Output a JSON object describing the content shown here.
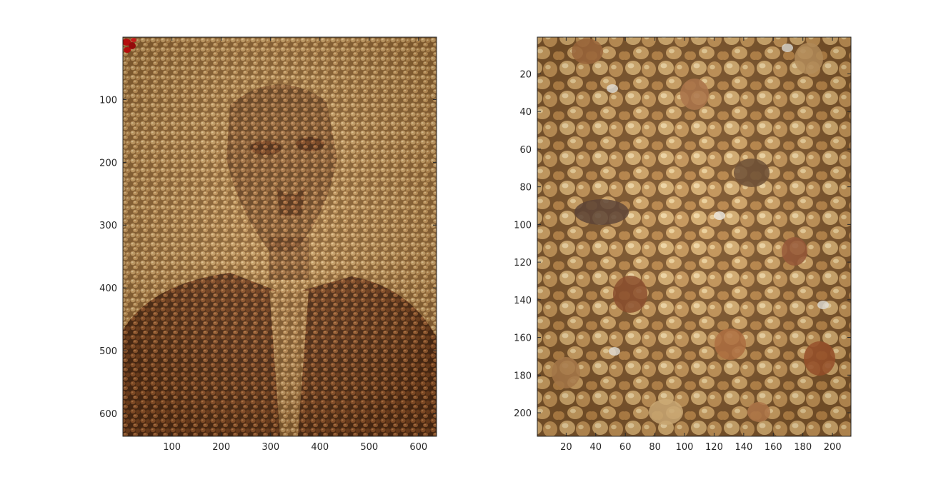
{
  "chart_data": [
    {
      "type": "image",
      "title": "",
      "xlabel": "",
      "ylabel": "",
      "xlim": [
        0.5,
        636.5
      ],
      "ylim": [
        0.5,
        636.5
      ],
      "y_reversed": true,
      "xticks": [
        100,
        200,
        300,
        400,
        500,
        600
      ],
      "yticks": [
        100,
        200,
        300,
        400,
        500,
        600
      ],
      "grid": false,
      "content": "grain mosaic image forming a portrait",
      "colors": {
        "light_grain": "#c79a5e",
        "dark_grain": "#7a4424",
        "accent": "#cc1010"
      }
    },
    {
      "type": "image",
      "title": "",
      "xlabel": "",
      "ylabel": "",
      "xlim": [
        0.5,
        212.5
      ],
      "ylim": [
        0.5,
        212.5
      ],
      "y_reversed": true,
      "xticks": [
        20,
        40,
        60,
        80,
        100,
        120,
        140,
        160,
        180,
        200
      ],
      "yticks": [
        20,
        40,
        60,
        80,
        100,
        120,
        140,
        160,
        180,
        200
      ],
      "grid": false,
      "content": "close-up of millet grains",
      "colors": {
        "light_grain": "#d9b47a",
        "dark_grain": "#8a5a30"
      }
    }
  ]
}
